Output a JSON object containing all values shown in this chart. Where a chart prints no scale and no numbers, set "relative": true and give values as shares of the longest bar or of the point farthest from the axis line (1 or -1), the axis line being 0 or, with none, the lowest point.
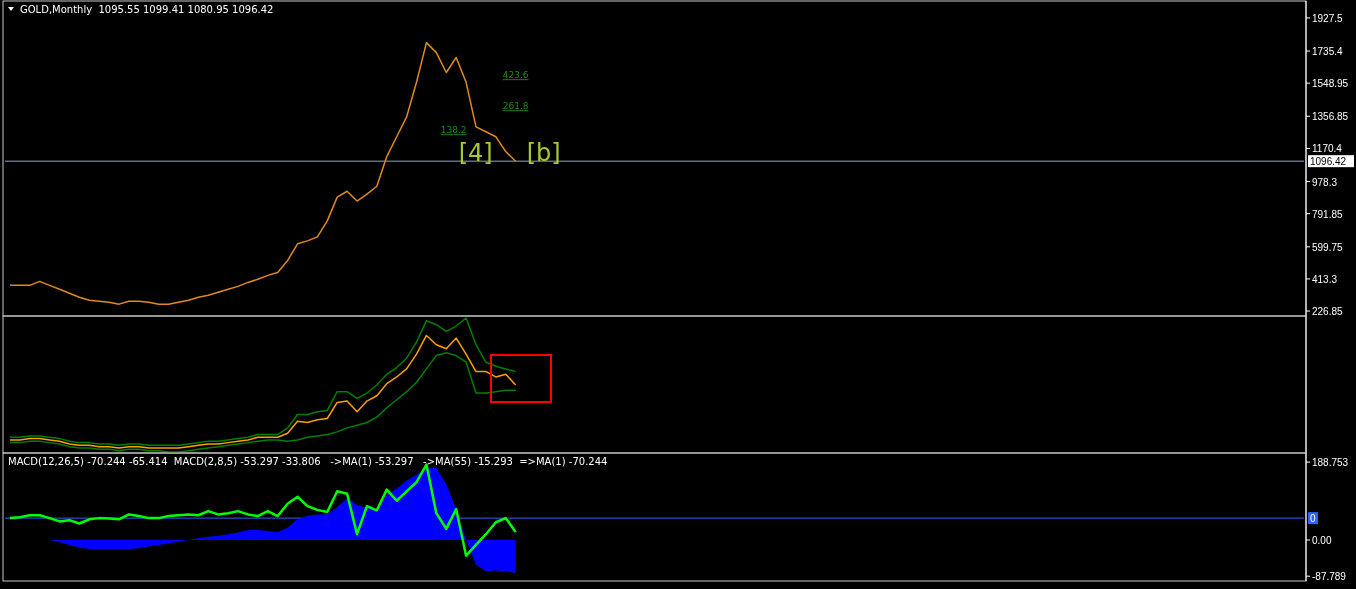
{
  "chart_data": [
    {
      "type": "line",
      "title": "GOLD,Monthly  1095.55 1099.41 1080.95 1096.42",
      "categories": [
        null,
        null,
        null,
        null,
        null,
        null,
        null,
        null,
        null,
        null,
        null,
        null,
        null,
        null,
        null,
        null,
        null,
        null,
        null,
        null,
        null,
        null,
        null,
        null,
        null,
        null,
        null,
        null,
        null,
        null,
        null,
        null,
        null,
        null,
        null,
        null,
        null,
        null,
        null,
        null,
        null,
        null,
        null,
        null,
        null,
        null,
        null,
        null,
        null,
        null,
        null,
        null,
        null,
        null,
        null,
        null,
        null,
        null,
        null,
        null,
        null,
        null,
        null,
        null,
        null,
        null,
        null,
        null,
        null,
        null,
        null,
        null,
        null,
        null,
        null,
        null,
        null,
        null,
        null,
        null,
        null,
        null,
        null,
        null,
        null,
        null,
        null,
        null,
        null,
        null,
        null,
        null,
        null,
        null,
        null,
        null,
        null,
        null,
        null,
        null,
        null,
        null,
        null,
        null,
        null,
        null,
        null,
        null,
        null,
        null,
        null,
        null,
        null,
        null,
        null,
        null,
        null,
        null,
        null,
        null,
        null,
        null,
        null,
        null,
        null,
        null,
        null,
        null,
        null,
        null,
        null
      ],
      "series": [
        {
          "color": "#e08a1e",
          "values": [
            376,
            376,
            376,
            399,
            376,
            353,
            330,
            307,
            290,
            284,
            278,
            267,
            284,
            284,
            278,
            267,
            267,
            278,
            290,
            307,
            319,
            336,
            353,
            370,
            393,
            411,
            434,
            451,
            520,
            617,
            634,
            657,
            750,
            888,
            922,
            865,
            905,
            951,
            1123,
            1238,
            1353,
            1554,
            1784,
            1726,
            1611,
            1698,
            1554,
            1295,
            1267,
            1238,
            1152,
            1096,
            null,
            null,
            null,
            null,
            null,
            null,
            null,
            null,
            null,
            null,
            null,
            null,
            null,
            null,
            null,
            null,
            null,
            null,
            null,
            null,
            null,
            null,
            null,
            null,
            null,
            null,
            null,
            null,
            null,
            null,
            null,
            null,
            null,
            null,
            null,
            null,
            null,
            null,
            null,
            null,
            null,
            null,
            null,
            null,
            null,
            null,
            null,
            null,
            null,
            null,
            null,
            null,
            null,
            null,
            null,
            null,
            null,
            null,
            null,
            null,
            null,
            null,
            null,
            null,
            null,
            null,
            null,
            null,
            null,
            null,
            null,
            null,
            null,
            null,
            null,
            null,
            null,
            null,
            null
          ]
        }
      ],
      "ylim": [
        204,
        2014
      ],
      "yticks": [
        226.85,
        413.3,
        599.75,
        791.85,
        978.3,
        1170.4,
        1356.85,
        1548.95,
        1735.4,
        1927.5
      ],
      "ref_lines": [
        {
          "axis": "y",
          "value": 1096.42,
          "label": "1096.42",
          "color": "#8ea4bc"
        }
      ],
      "annotations": [
        "423.6",
        "261.8",
        "138.2",
        "[4]",
        "[b]"
      ],
      "tick_labels": "y"
    },
    {
      "type": "line",
      "relative": true,
      "categories": [
        null,
        null,
        null,
        null,
        null,
        null,
        null,
        null,
        null,
        null,
        null,
        null,
        null,
        null,
        null,
        null,
        null,
        null,
        null,
        null,
        null,
        null,
        null,
        null,
        null,
        null,
        null,
        null,
        null,
        null,
        null,
        null,
        null,
        null,
        null,
        null,
        null,
        null,
        null,
        null,
        null,
        null,
        null,
        null,
        null,
        null,
        null,
        null,
        null,
        null,
        null,
        null,
        null,
        null,
        null,
        null,
        null,
        null,
        null,
        null,
        null,
        null,
        null,
        null,
        null,
        null,
        null,
        null,
        null,
        null,
        null,
        null,
        null,
        null,
        null,
        null,
        null,
        null,
        null,
        null,
        null,
        null,
        null,
        null,
        null,
        null,
        null,
        null,
        null,
        null,
        null,
        null,
        null,
        null,
        null,
        null,
        null,
        null,
        null,
        null,
        null,
        null,
        null,
        null,
        null,
        null,
        null,
        null,
        null,
        null,
        null,
        null,
        null,
        null,
        null,
        null,
        null,
        null,
        null,
        null,
        null,
        null,
        null,
        null,
        null,
        null,
        null,
        null,
        null,
        null,
        null
      ],
      "series": [
        {
          "color": "#008000",
          "values": [
            0.11,
            0.11,
            0.12,
            0.12,
            0.11,
            0.1,
            0.08,
            0.07,
            0.07,
            0.06,
            0.06,
            0.05,
            0.06,
            0.06,
            0.05,
            0.05,
            0.05,
            0.05,
            0.06,
            0.07,
            0.08,
            0.08,
            0.09,
            0.1,
            0.11,
            0.13,
            0.13,
            0.13,
            0.18,
            0.28,
            0.28,
            0.3,
            0.31,
            0.45,
            0.45,
            0.4,
            0.44,
            0.5,
            0.58,
            0.63,
            0.7,
            0.82,
            0.98,
            0.95,
            0.9,
            0.94,
            1.0,
            0.8,
            0.67,
            0.64,
            0.62,
            0.6,
            null,
            null,
            null,
            null,
            null,
            null,
            null,
            null,
            null,
            null,
            null,
            null,
            null,
            null,
            null,
            null,
            null,
            null,
            null,
            null,
            null,
            null,
            null,
            null,
            null,
            null,
            null,
            null,
            null,
            null,
            null,
            null,
            null,
            null,
            null,
            null,
            null,
            null,
            null,
            null,
            null,
            null,
            null,
            null,
            null,
            null,
            null,
            null,
            null,
            null,
            null,
            null,
            null,
            null,
            null,
            null,
            null,
            null,
            null,
            null,
            null,
            null,
            null,
            null,
            null,
            null,
            null,
            null,
            null,
            null,
            null,
            null,
            null,
            null,
            null,
            null,
            null,
            null,
            null
          ]
        },
        {
          "color": "#008000",
          "values": [
            0.07,
            0.07,
            0.08,
            0.08,
            0.07,
            0.06,
            0.04,
            0.03,
            0.03,
            0.02,
            0.02,
            0.01,
            0.02,
            0.02,
            0.01,
            0.01,
            0,
            0,
            0.01,
            0.02,
            0.03,
            0.04,
            0.05,
            0.06,
            0.07,
            0.08,
            0.09,
            0.09,
            0.08,
            0.09,
            0.11,
            0.12,
            0.13,
            0.15,
            0.18,
            0.2,
            0.22,
            0.26,
            0.33,
            0.39,
            0.45,
            0.52,
            0.62,
            0.72,
            0.74,
            0.72,
            0.67,
            0.44,
            0.44,
            0.45,
            0.46,
            0.46,
            null,
            null,
            null,
            null,
            null,
            null,
            null,
            null,
            null,
            null,
            null,
            null,
            null,
            null,
            null,
            null,
            null,
            null,
            null,
            null,
            null,
            null,
            null,
            null,
            null,
            null,
            null,
            null,
            null,
            null,
            null,
            null,
            null,
            null,
            null,
            null,
            null,
            null,
            null,
            null,
            null,
            null,
            null,
            null,
            null,
            null,
            null,
            null,
            null,
            null,
            null,
            null,
            null,
            null,
            null,
            null,
            null,
            null,
            null,
            null,
            null,
            null,
            null,
            null,
            null,
            null,
            null,
            null,
            null,
            null,
            null,
            null,
            null,
            null,
            null,
            null,
            null,
            null,
            null
          ]
        },
        {
          "color": "#ffa000",
          "values": [
            0.09,
            0.09,
            0.1,
            0.1,
            0.09,
            0.08,
            0.06,
            0.05,
            0.05,
            0.04,
            0.04,
            0.03,
            0.04,
            0.04,
            0.03,
            0.03,
            0.03,
            0.03,
            0.04,
            0.05,
            0.06,
            0.06,
            0.07,
            0.08,
            0.09,
            0.11,
            0.11,
            0.11,
            0.14,
            0.23,
            0.22,
            0.24,
            0.25,
            0.37,
            0.38,
            0.3,
            0.38,
            0.42,
            0.51,
            0.56,
            0.62,
            0.73,
            0.87,
            0.8,
            0.77,
            0.85,
            0.73,
            0.6,
            0.6,
            0.56,
            0.58,
            0.5,
            null,
            null,
            null,
            null,
            null,
            null,
            null,
            null,
            null,
            null,
            null,
            null,
            null,
            null,
            null,
            null,
            null,
            null,
            null,
            null,
            null,
            null,
            null,
            null,
            null,
            null,
            null,
            null,
            null,
            null,
            null,
            null,
            null,
            null,
            null,
            null,
            null,
            null,
            null,
            null,
            null,
            null,
            null,
            null,
            null,
            null,
            null,
            null,
            null,
            null,
            null,
            null,
            null,
            null,
            null,
            null,
            null,
            null,
            null,
            null,
            null,
            null,
            null,
            null,
            null,
            null,
            null,
            null,
            null,
            null,
            null,
            null,
            null,
            null,
            null,
            null,
            null,
            null,
            null
          ]
        }
      ],
      "tick_labels": false
    },
    {
      "type": "line",
      "title": "MACD(12,26,5) -70.244 -65.414  MACD(2,8,5) -53.297 -33.806   ->MA(1) -53.297   ->MA(55) -15.293  =>MA(1) -70.244",
      "categories": [
        null,
        null,
        null,
        null,
        null,
        null,
        null,
        null,
        null,
        null,
        null,
        null,
        null,
        null,
        null,
        null,
        null,
        null,
        null,
        null,
        null,
        null,
        null,
        null,
        null,
        null,
        null,
        null,
        null,
        null,
        null,
        null,
        null,
        null,
        null,
        null,
        null,
        null,
        null,
        null,
        null,
        null,
        null,
        null,
        null,
        null,
        null,
        null,
        null,
        null,
        null,
        null,
        null,
        null,
        null,
        null,
        null,
        null,
        null,
        null,
        null,
        null,
        null,
        null,
        null,
        null,
        null,
        null,
        null,
        null,
        null,
        null,
        null,
        null,
        null,
        null,
        null,
        null,
        null,
        null,
        null,
        null,
        null,
        null,
        null,
        null,
        null,
        null,
        null,
        null,
        null,
        null,
        null,
        null,
        null,
        null,
        null,
        null,
        null,
        null,
        null,
        null,
        null,
        null,
        null,
        null,
        null,
        null,
        null,
        null,
        null,
        null,
        null,
        null,
        null,
        null,
        null,
        null,
        null,
        null,
        null,
        null,
        null,
        null,
        null,
        null,
        null,
        null,
        null,
        null,
        null
      ],
      "series": [
        {
          "type": "area",
          "color": "#0000ff",
          "values": [
            0,
            0,
            0,
            0,
            0,
            -5,
            -12,
            -18,
            -22,
            -22,
            -22,
            -22,
            -22,
            -20,
            -16,
            -12,
            -8,
            -4,
            0,
            5,
            8,
            10,
            14,
            18,
            24,
            24,
            22,
            19,
            30,
            50,
            59,
            62,
            62,
            80,
            101,
            85,
            78,
            76,
            110,
            125,
            144,
            158,
            175,
            175,
            135,
            75,
            0,
            -60,
            -76,
            -74,
            -76,
            -80,
            null,
            null,
            null,
            null,
            null,
            null,
            null,
            null,
            null,
            null,
            null,
            null,
            null,
            null,
            null,
            null,
            null,
            null,
            null,
            null,
            null,
            null,
            null,
            null,
            null,
            null,
            null,
            null,
            null,
            null,
            null,
            null,
            null,
            null,
            null,
            null,
            null,
            null,
            null,
            null,
            null,
            null,
            null,
            null,
            null,
            null,
            null,
            null,
            null,
            null,
            null,
            null,
            null,
            null,
            null,
            null,
            null,
            null,
            null,
            null,
            null,
            null,
            null,
            null,
            null,
            null,
            null,
            null,
            null,
            null,
            null,
            null,
            null,
            null,
            null,
            null,
            null,
            null,
            null
          ]
        },
        {
          "type": "line",
          "color": "#00ff00",
          "values": [
            53,
            55,
            60,
            60,
            53,
            45,
            48,
            40,
            50,
            53,
            52,
            50,
            62,
            58,
            53,
            53,
            58,
            60,
            62,
            60,
            70,
            62,
            65,
            70,
            62,
            58,
            70,
            58,
            88,
            105,
            82,
            73,
            68,
            118,
            112,
            14,
            82,
            72,
            122,
            95,
            118,
            140,
            183,
            65,
            27,
            75,
            -38,
            -12,
            14,
            43,
            53,
            19,
            null,
            null,
            null,
            null,
            null,
            null,
            null,
            null,
            null,
            null,
            null,
            null,
            null,
            null,
            null,
            null,
            null,
            null,
            null,
            null,
            null,
            null,
            null,
            null,
            null,
            null,
            null,
            null,
            null,
            null,
            null,
            null,
            null,
            null,
            null,
            null,
            null,
            null,
            null,
            null,
            null,
            null,
            null,
            null,
            null,
            null,
            null,
            null,
            null,
            null,
            null,
            null,
            null,
            null,
            null,
            null,
            null,
            null,
            null,
            null,
            null,
            null,
            null,
            null,
            null,
            null,
            null,
            null,
            null,
            null,
            null,
            null,
            null,
            null,
            null,
            null,
            null,
            null,
            null
          ]
        }
      ],
      "ylim": [
        -97,
        206
      ],
      "yticks": [
        -87.789,
        {
          "value": 0,
          "label": "0.00"
        },
        188.753
      ],
      "ref_lines": [
        {
          "axis": "y",
          "value": 53,
          "color": "#3060ff"
        }
      ],
      "annotations": [
        "0"
      ],
      "tick_labels": "y"
    }
  ]
}
